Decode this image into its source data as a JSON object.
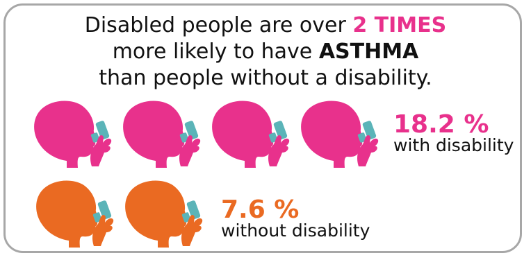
{
  "colors": {
    "accent_pink": "#e8318c",
    "accent_orange": "#ea6a22",
    "inhaler": "#5bb4b8",
    "frame": "#a7a7a7",
    "text": "#111111"
  },
  "headline": {
    "line1_prefix": "Disabled people are over ",
    "line1_emphasis": "2 TIMES",
    "line2_prefix": "more likely to have ",
    "line2_emphasis": "ASTHMA",
    "line3": "than people without a disability."
  },
  "icon_name": "head-with-inhaler-icon",
  "groups": {
    "with_disability": {
      "icon_count": 4,
      "color": "#e8318c",
      "percent": "18.2 %",
      "label": "with disability"
    },
    "without_disability": {
      "icon_count": 2,
      "color": "#ea6a22",
      "percent": "7.6 %",
      "label": "without disability"
    }
  }
}
